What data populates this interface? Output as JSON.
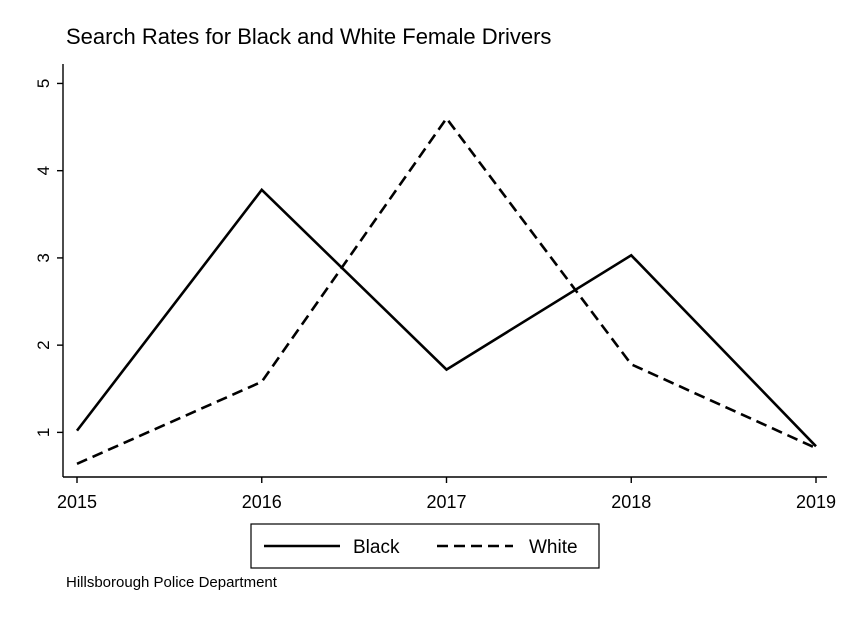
{
  "chart_data": {
    "type": "line",
    "title": "Search Rates for Black and White Female Drivers",
    "note": "Hillsborough Police Department",
    "xlabel": "",
    "ylabel": "",
    "x": [
      2015,
      2016,
      2017,
      2018,
      2019
    ],
    "xticks": [
      "2015",
      "2016",
      "2017",
      "2018",
      "2019"
    ],
    "yticks": [
      "1",
      "2",
      "3",
      "4",
      "5"
    ],
    "xlim": [
      2015,
      2019
    ],
    "ylim": [
      0.5,
      5.2
    ],
    "grid": false,
    "legend_position": "bottom",
    "series": [
      {
        "name": "Black",
        "values": [
          1.02,
          3.78,
          1.72,
          3.03,
          0.84
        ],
        "color": "#000000",
        "line_style": "solid"
      },
      {
        "name": "White",
        "values": [
          0.64,
          1.58,
          4.6,
          1.78,
          0.82
        ],
        "color": "#000000",
        "line_style": "dashed"
      }
    ]
  }
}
